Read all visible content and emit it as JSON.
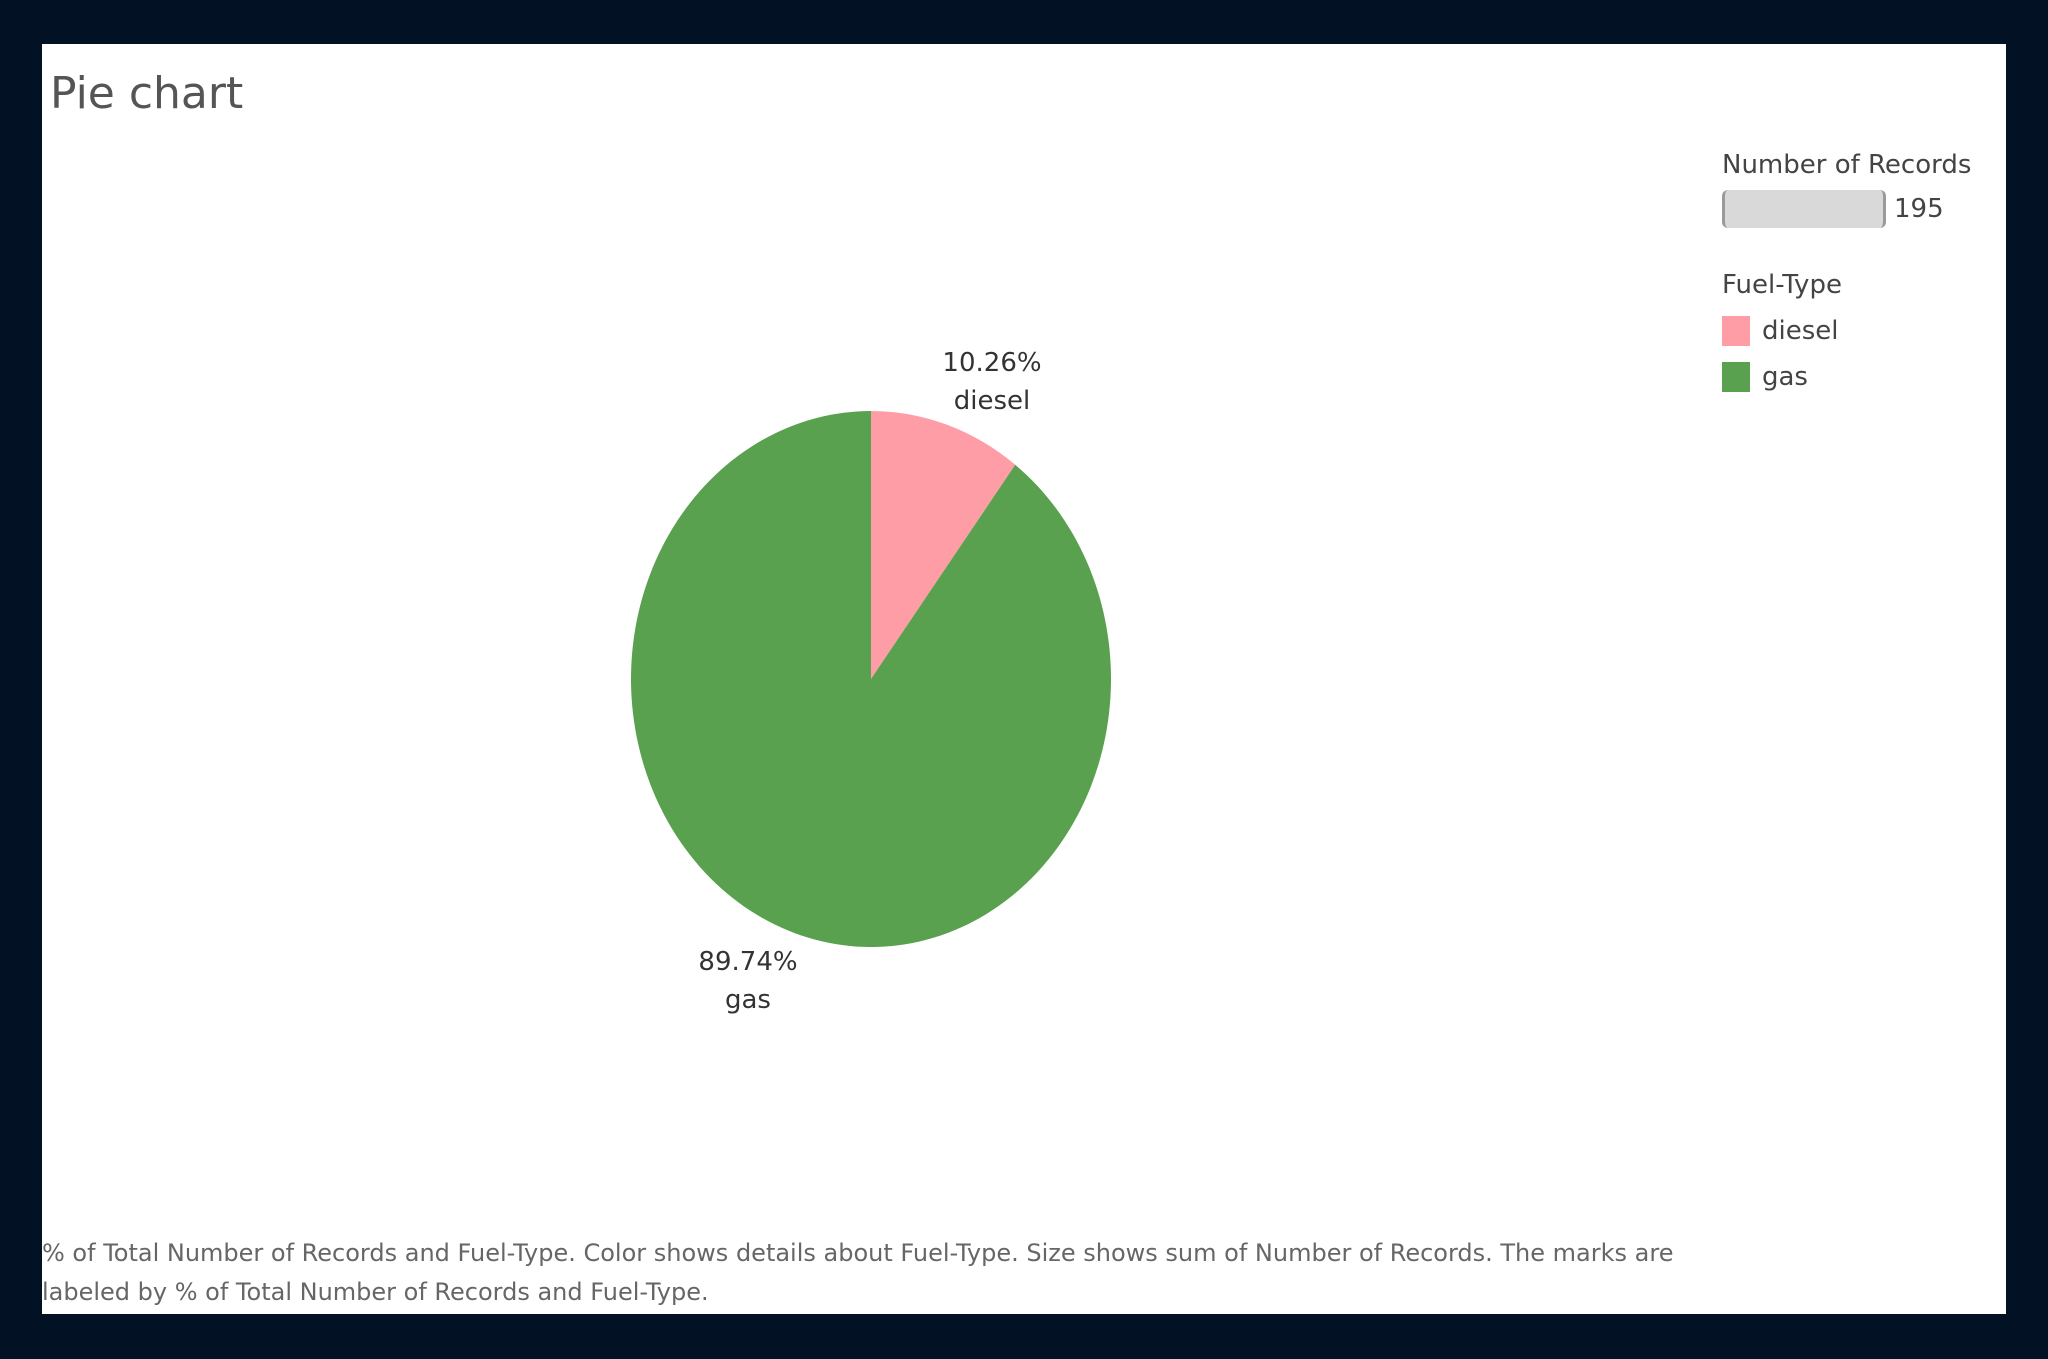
{
  "title": "Pie chart",
  "chart_data": {
    "type": "pie",
    "title": "Pie chart",
    "slices": [
      {
        "name": "diesel",
        "value": 10.26,
        "label": "10.26%",
        "color": "#ff9da7"
      },
      {
        "name": "gas",
        "value": 89.74,
        "label": "89.74%",
        "color": "#59a14f"
      }
    ],
    "legend": {
      "title": "Fuel-Type",
      "items": [
        "diesel",
        "gas"
      ],
      "placement": "top-right"
    },
    "size_legend": {
      "title": "Number of Records",
      "max_value": "195"
    }
  },
  "caption": "% of Total Number of Records and Fuel-Type.  Color shows details about Fuel-Type.  Size shows sum of Number of Records.  The marks are labeled by % of Total Number of Records and Fuel-Type."
}
